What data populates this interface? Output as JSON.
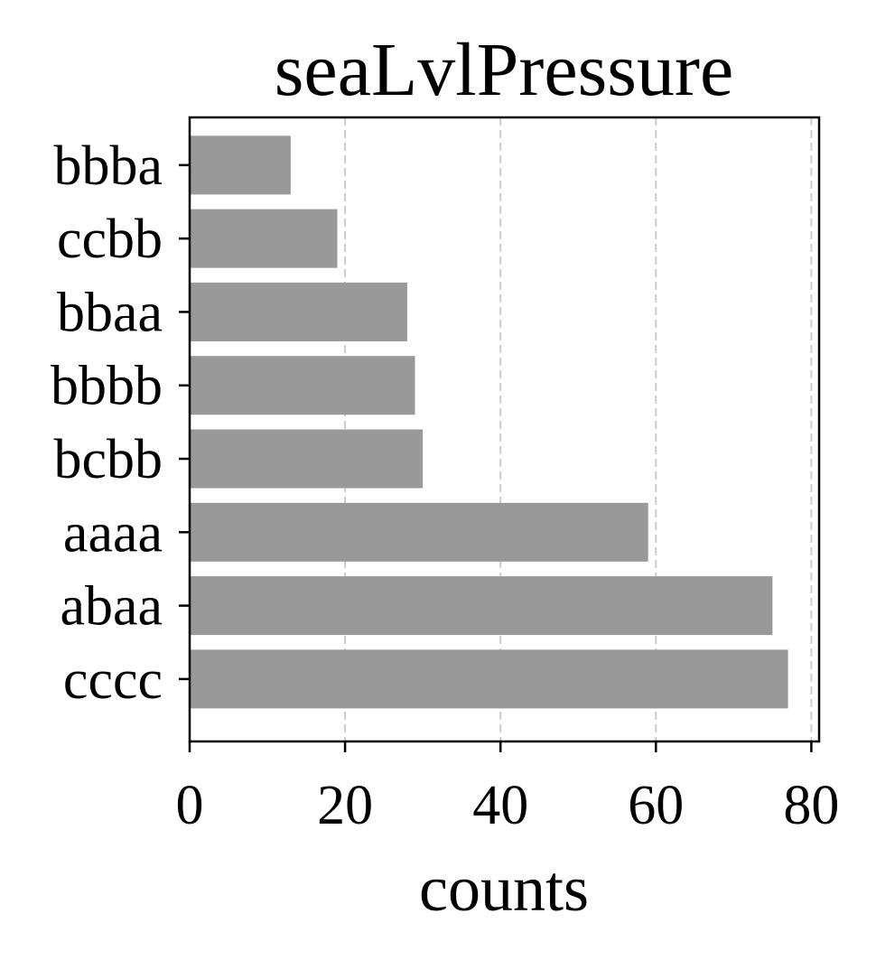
{
  "chart_data": {
    "type": "bar",
    "orientation": "horizontal",
    "title": "seaLvlPressure",
    "xlabel": "counts",
    "ylabel": "",
    "categories": [
      "bbba",
      "ccbb",
      "bbaa",
      "bbbb",
      "bcbb",
      "aaaa",
      "abaa",
      "cccc"
    ],
    "values": [
      13,
      19,
      28,
      29,
      30,
      59,
      75,
      77
    ],
    "xlim": [
      0,
      81
    ],
    "xticks": [
      "0",
      "20",
      "40",
      "60",
      "80"
    ],
    "grid": "vertical-dashed",
    "bar_color": "#999999",
    "grid_color": "#cccccc"
  }
}
